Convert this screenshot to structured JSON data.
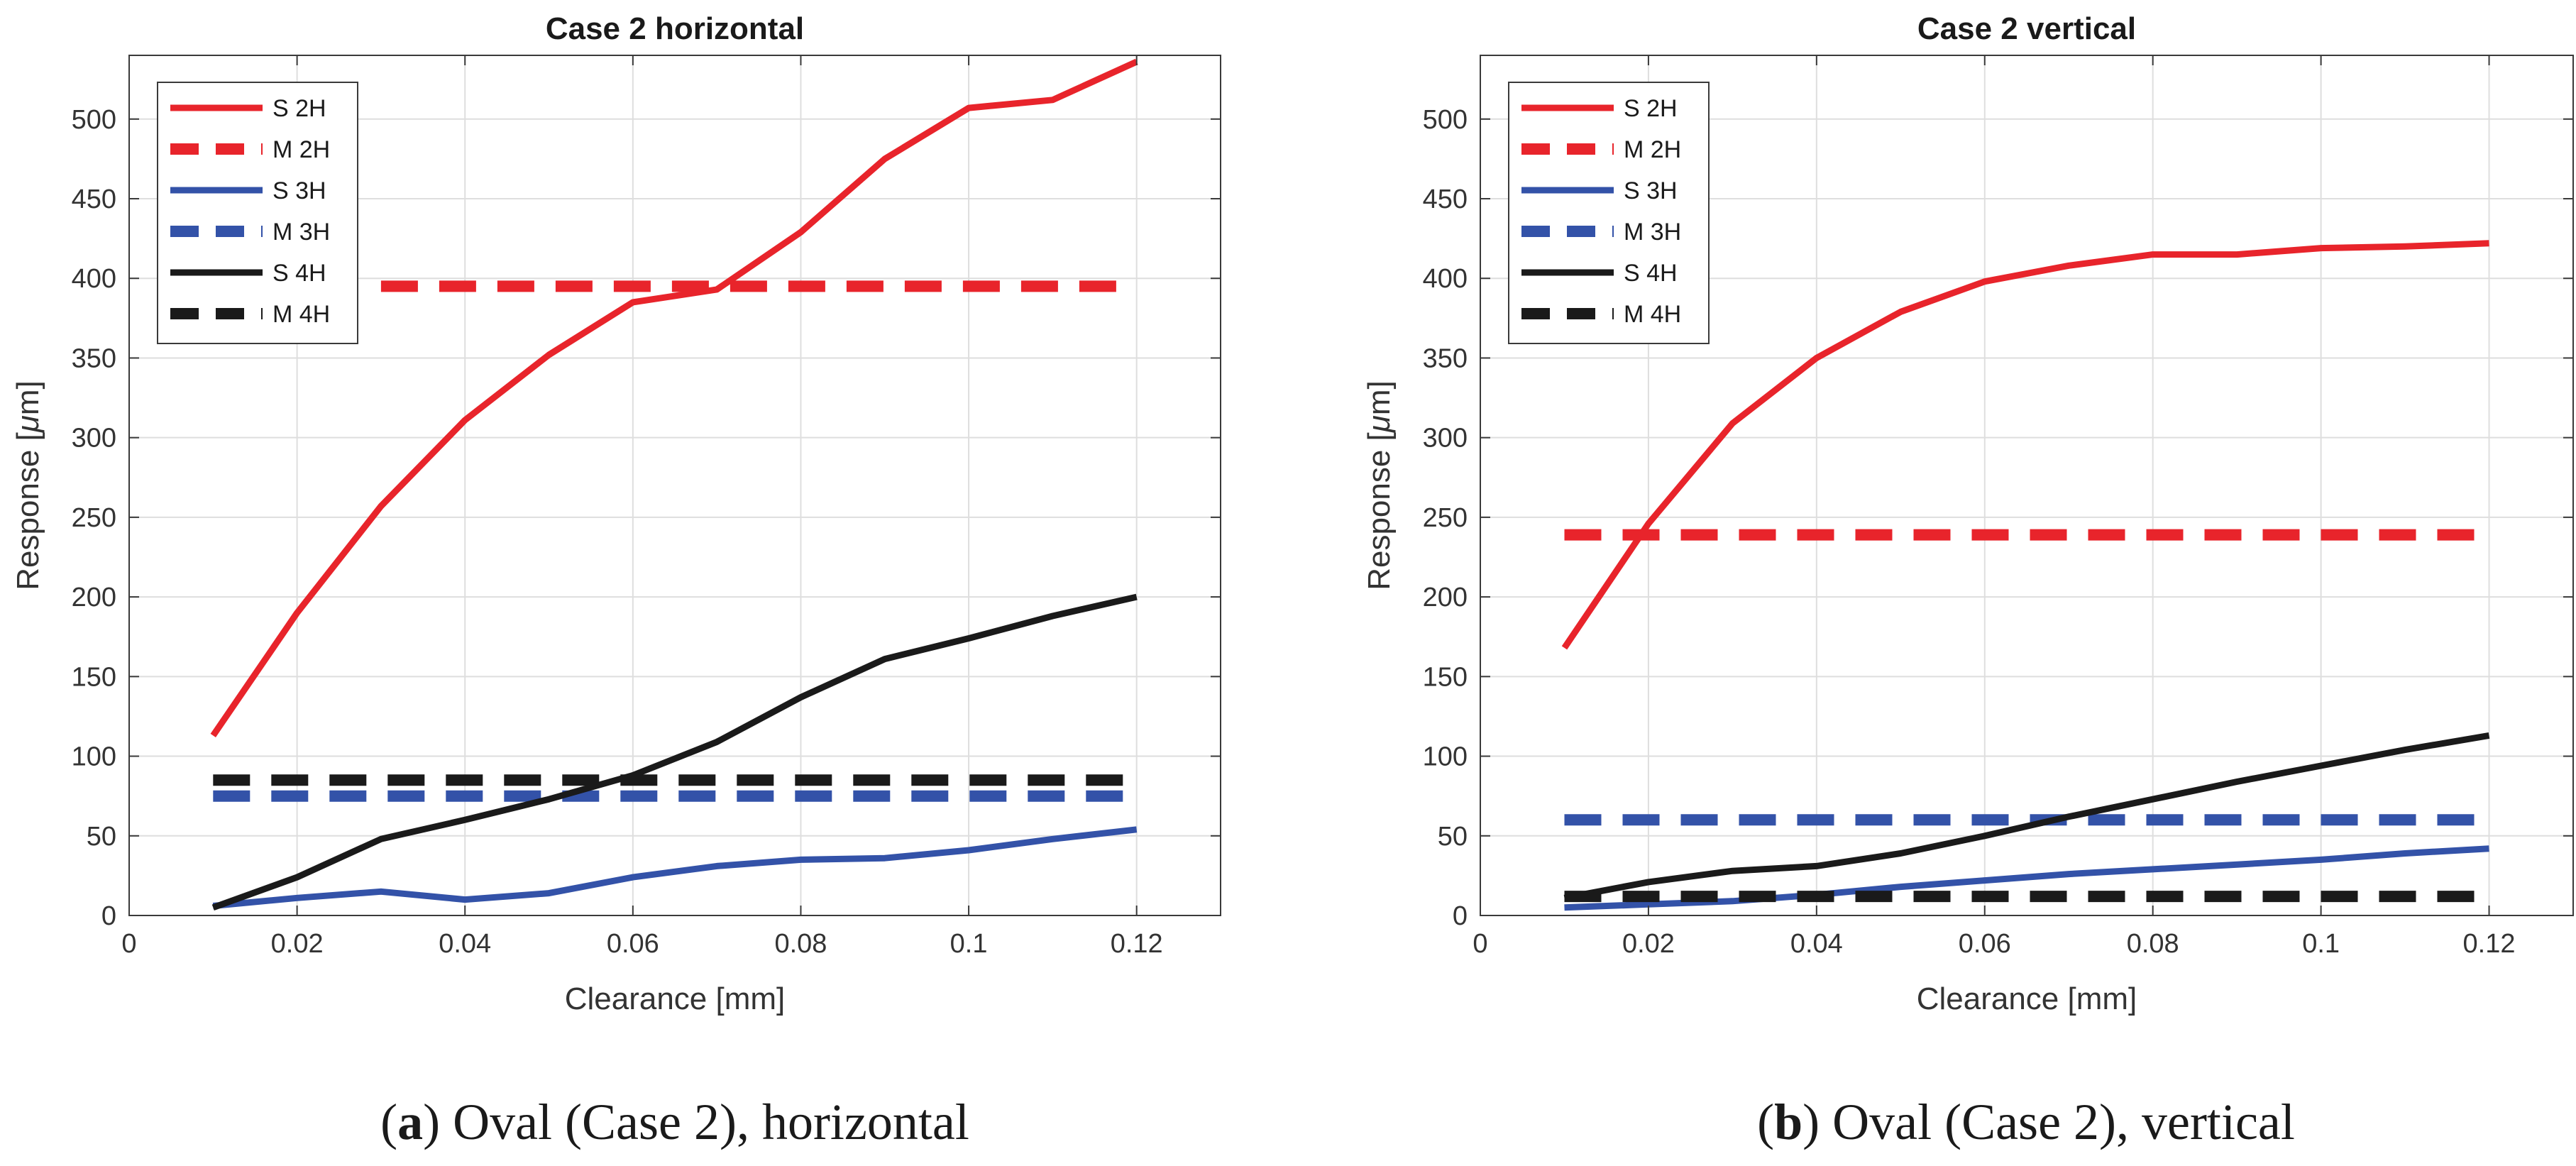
{
  "chart_data": [
    {
      "type": "line",
      "title": "Case 2 horizontal",
      "xlabel": "Clearance [mm]",
      "ylabel": "Response [",
      "ylabel_symbol": "μ",
      "ylabel_unit": "m]",
      "xlim": [
        0,
        0.13
      ],
      "ylim": [
        0,
        540
      ],
      "xticks": [
        0,
        0.02,
        0.04,
        0.06,
        0.08,
        0.1,
        0.12
      ],
      "xtick_labels": [
        "0",
        "0.02",
        "0.04",
        "0.06",
        "0.08",
        "0.1",
        "0.12"
      ],
      "yticks": [
        0,
        50,
        100,
        150,
        200,
        250,
        300,
        350,
        400,
        450,
        500
      ],
      "ytick_labels": [
        "0",
        "50",
        "100",
        "150",
        "200",
        "250",
        "300",
        "350",
        "400",
        "450",
        "500"
      ],
      "legend_position": "top-left",
      "caption_letter": "a",
      "caption_text": ") Oval (Case 2), horizontal",
      "series": [
        {
          "name": "S 2H",
          "color": "#e8242b",
          "style": "solid",
          "x": [
            0.01,
            0.02,
            0.03,
            0.04,
            0.05,
            0.06,
            0.07,
            0.08,
            0.09,
            0.1,
            0.11,
            0.12
          ],
          "y": [
            113,
            190,
            257,
            311,
            352,
            385,
            393,
            429,
            475,
            507,
            512,
            536
          ]
        },
        {
          "name": "M 2H",
          "color": "#e8242b",
          "style": "dashed",
          "x": [
            0.03,
            0.12
          ],
          "y": [
            395,
            395
          ]
        },
        {
          "name": "S 3H",
          "color": "#3352a8",
          "style": "solid",
          "x": [
            0.01,
            0.02,
            0.03,
            0.04,
            0.05,
            0.06,
            0.07,
            0.08,
            0.09,
            0.1,
            0.11,
            0.12
          ],
          "y": [
            6,
            11,
            15,
            10,
            14,
            24,
            31,
            35,
            36,
            41,
            48,
            54
          ]
        },
        {
          "name": "M 3H",
          "color": "#3352a8",
          "style": "dashed",
          "x": [
            0.01,
            0.12
          ],
          "y": [
            75,
            75
          ]
        },
        {
          "name": "S 4H",
          "color": "#1a1a1a",
          "style": "solid",
          "x": [
            0.01,
            0.02,
            0.03,
            0.04,
            0.05,
            0.06,
            0.07,
            0.08,
            0.09,
            0.1,
            0.11,
            0.12
          ],
          "y": [
            5,
            24,
            48,
            60,
            73,
            88,
            109,
            137,
            161,
            174,
            188,
            200
          ]
        },
        {
          "name": "M 4H",
          "color": "#1a1a1a",
          "style": "dashed",
          "x": [
            0.01,
            0.12
          ],
          "y": [
            85,
            85
          ]
        }
      ]
    },
    {
      "type": "line",
      "title": "Case 2 vertical",
      "xlabel": "Clearance [mm]",
      "ylabel": "Response [",
      "ylabel_symbol": "μ",
      "ylabel_unit": "m]",
      "xlim": [
        0,
        0.13
      ],
      "ylim": [
        0,
        540
      ],
      "xticks": [
        0,
        0.02,
        0.04,
        0.06,
        0.08,
        0.1,
        0.12
      ],
      "xtick_labels": [
        "0",
        "0.02",
        "0.04",
        "0.06",
        "0.08",
        "0.1",
        "0.12"
      ],
      "yticks": [
        0,
        50,
        100,
        150,
        200,
        250,
        300,
        350,
        400,
        450,
        500
      ],
      "ytick_labels": [
        "0",
        "50",
        "100",
        "150",
        "200",
        "250",
        "300",
        "350",
        "400",
        "450",
        "500"
      ],
      "legend_position": "top-left",
      "caption_letter": "b",
      "caption_text": ") Oval (Case 2), vertical",
      "series": [
        {
          "name": "S 2H",
          "color": "#e8242b",
          "style": "solid",
          "x": [
            0.01,
            0.02,
            0.03,
            0.04,
            0.05,
            0.06,
            0.07,
            0.08,
            0.09,
            0.1,
            0.11,
            0.12
          ],
          "y": [
            168,
            246,
            309,
            350,
            379,
            398,
            408,
            415,
            415,
            419,
            420,
            422
          ]
        },
        {
          "name": "M 2H",
          "color": "#e8242b",
          "style": "dashed",
          "x": [
            0.01,
            0.12
          ],
          "y": [
            239,
            239
          ]
        },
        {
          "name": "S 3H",
          "color": "#3352a8",
          "style": "solid",
          "x": [
            0.01,
            0.02,
            0.03,
            0.04,
            0.05,
            0.06,
            0.07,
            0.08,
            0.09,
            0.1,
            0.11,
            0.12
          ],
          "y": [
            5,
            7,
            9,
            13,
            18,
            22,
            26,
            29,
            32,
            35,
            39,
            42
          ]
        },
        {
          "name": "M 3H",
          "color": "#3352a8",
          "style": "dashed",
          "x": [
            0.01,
            0.12
          ],
          "y": [
            60,
            60
          ]
        },
        {
          "name": "S 4H",
          "color": "#1a1a1a",
          "style": "solid",
          "x": [
            0.01,
            0.02,
            0.03,
            0.04,
            0.05,
            0.06,
            0.07,
            0.08,
            0.09,
            0.1,
            0.11,
            0.12
          ],
          "y": [
            11,
            21,
            28,
            31,
            39,
            50,
            62,
            73,
            84,
            94,
            104,
            113
          ]
        },
        {
          "name": "M 4H",
          "color": "#1a1a1a",
          "style": "dashed",
          "x": [
            0.01,
            0.12
          ],
          "y": [
            12,
            12
          ]
        }
      ]
    }
  ]
}
